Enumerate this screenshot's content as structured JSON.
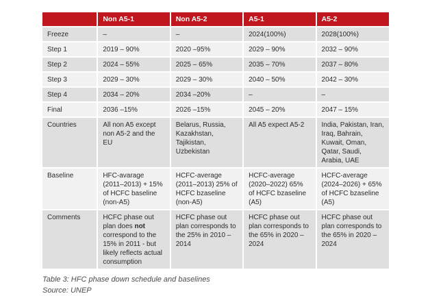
{
  "accent_color": "#c0161d",
  "stripe_dark": "#dfdfdf",
  "stripe_light": "#f1f1f1",
  "table": {
    "columns": [
      "",
      "Non A5-1",
      "Non A5-2",
      "A5-1",
      "A5-2"
    ],
    "rows": [
      {
        "label": "Freeze",
        "values": [
          "–",
          "–",
          "2024(100%)",
          "2028(100%)"
        ]
      },
      {
        "label": "Step 1",
        "values": [
          "2019 – 90%",
          "2020 –95%",
          "2029 – 90%",
          "2032 – 90%"
        ]
      },
      {
        "label": "Step 2",
        "values": [
          "2024 – 55%",
          "2025 – 65%",
          "2035 – 70%",
          "2037 – 80%"
        ]
      },
      {
        "label": "Step 3",
        "values": [
          "2029 – 30%",
          "2029 – 30%",
          "2040 – 50%",
          "2042 – 30%"
        ]
      },
      {
        "label": "Step 4",
        "values": [
          "2034 – 20%",
          "2034 –20%",
          "–",
          "–"
        ]
      },
      {
        "label": "Final",
        "values": [
          "2036 –15%",
          "2026 –15%",
          "2045 – 20%",
          "2047 – 15%"
        ]
      },
      {
        "label": "Countries",
        "values": [
          "All non A5 except non A5-2 and the EU",
          "Belarus, Russia, Kazakhstan, Tajikistan, Uzbekistan",
          "All A5 expect A5-2",
          "India, Pakistan, Iran, Iraq, Bahrain, Kuwait, Oman, Qatar, Saudi, Arabia, UAE"
        ]
      },
      {
        "label": "Baseline",
        "values": [
          "HFC-avarage (2011–2013) + 15% of HCFC baseline (non-A5)",
          "HCFC-average (2011–2013) 25% of HCFC bzaseline (non-A5)",
          "HCFC-average (2020–2022) 65% of HCFC bzaseline (A5)",
          "HCFC-average (2024–2026) + 65% of HCFC bzaseline (A5)"
        ]
      },
      {
        "label": "Comments",
        "comment_cell": {
          "pre": "HCFC phase out plan does ",
          "bold": "not",
          "post": " correspond to the 15% in 2011 - but likely reflects actual consumption"
        },
        "values": [
          "HCFC phase out plan corresponds to the 25% in 2010 – 2014",
          "HCFC phase out plan corresponds to the 65% in 2020 – 2024",
          "HCFC phase out plan corresponds to the 65% in 2020 – 2024"
        ]
      }
    ]
  },
  "caption": {
    "title": "Table 3: HFC phase down schedule and baselines",
    "source": "Source: UNEP"
  }
}
